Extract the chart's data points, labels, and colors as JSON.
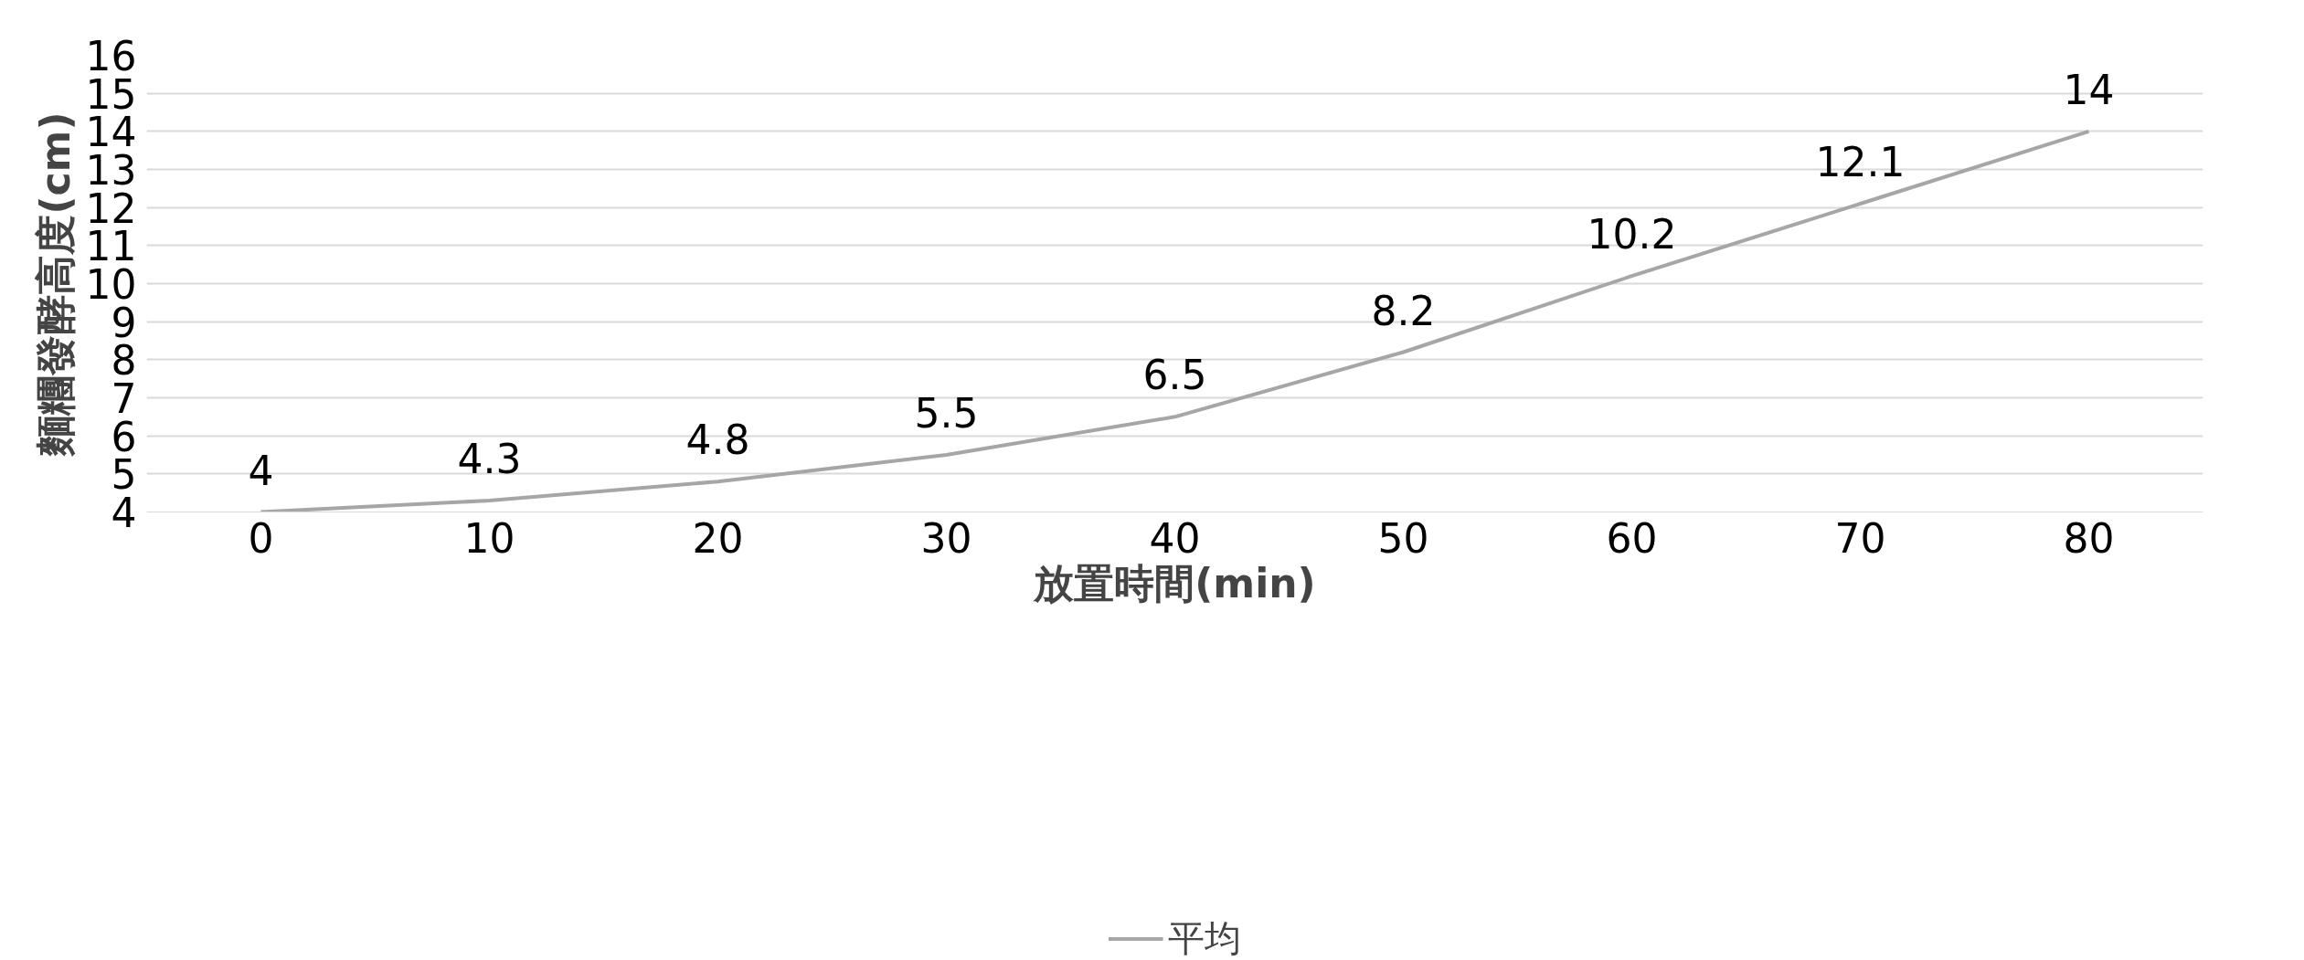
{
  "chart_data": {
    "type": "line",
    "xlabel": "放置時間(min)",
    "ylabel": "麵糰發酵高度(cm)",
    "categories": [
      "0",
      "10",
      "20",
      "30",
      "40",
      "50",
      "60",
      "70",
      "80"
    ],
    "series": [
      {
        "name": "平均",
        "color": "#a6a6a6",
        "values": [
          4,
          4.3,
          4.8,
          5.5,
          6.5,
          8.2,
          10.2,
          12.1,
          14
        ]
      }
    ],
    "ylim": [
      4,
      16
    ],
    "yticks": [
      4,
      5,
      6,
      7,
      8,
      9,
      10,
      11,
      12,
      13,
      14,
      15,
      16
    ],
    "grid": "y",
    "legend": "bottom",
    "data_labels": true,
    "marker": "none",
    "line_style": "solid"
  }
}
